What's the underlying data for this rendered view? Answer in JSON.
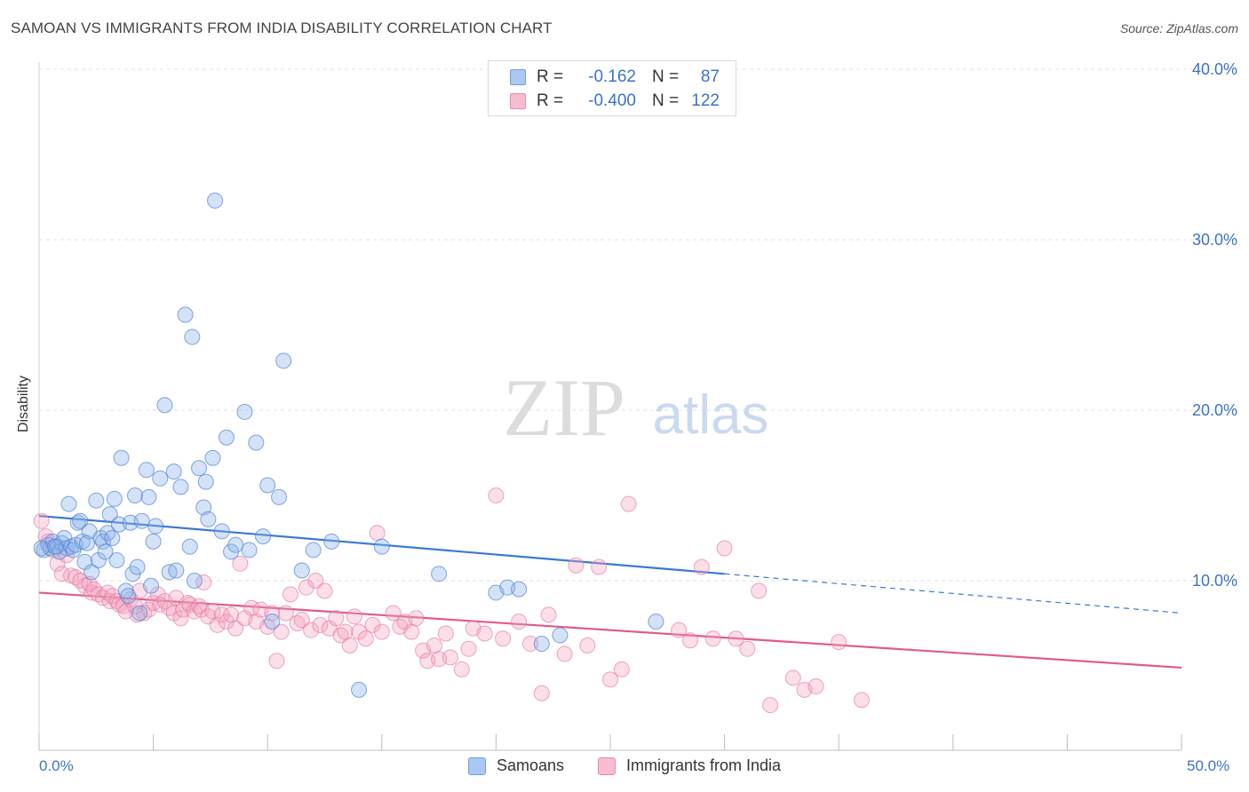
{
  "header": {
    "title": "SAMOAN VS IMMIGRANTS FROM INDIA DISABILITY CORRELATION CHART",
    "source": "Source: ZipAtlas.com"
  },
  "watermark": {
    "zip": "ZIP",
    "atlas": "atlas"
  },
  "legend": {
    "rows": [
      {
        "r_label": "R =",
        "r_value": "-0.162",
        "n_label": "N =",
        "n_value": "87",
        "color": "#aac8f2",
        "border": "#6f9fe0"
      },
      {
        "r_label": "R =",
        "r_value": "-0.400",
        "n_label": "N =",
        "n_value": "122",
        "color": "#f7bcd0",
        "border": "#e98aac"
      }
    ]
  },
  "bottom_legend": {
    "samoans": "Samoans",
    "india": "Immigrants from India"
  },
  "chart_data": {
    "type": "scatter",
    "title": "SAMOAN VS IMMIGRANTS FROM INDIA DISABILITY CORRELATION CHART",
    "xlabel": "",
    "ylabel": "Disability",
    "xlim": [
      0,
      50
    ],
    "ylim": [
      0,
      42
    ],
    "x_tick_labels": [
      "0.0%",
      "50.0%"
    ],
    "y_ticks": [
      10,
      20,
      30,
      40
    ],
    "y_tick_labels": [
      "10.0%",
      "20.0%",
      "30.0%",
      "40.0%"
    ],
    "grid": true,
    "legend_position": "top-center",
    "colors": {
      "samoans": "#3a78d6",
      "india": "#e05a8b",
      "axis_text": "#3a73c7"
    },
    "series": [
      {
        "name": "Samoans",
        "R": -0.162,
        "N": 87,
        "trend": {
          "x0": 0,
          "y0": 13.8,
          "x1": 30,
          "y1": 10.4,
          "dash_to_x": 50,
          "dash_to_y": 8.1
        },
        "points": [
          [
            0.2,
            11.8
          ],
          [
            0.4,
            12.1
          ],
          [
            0.5,
            11.9
          ],
          [
            0.6,
            12.3
          ],
          [
            0.8,
            12.0
          ],
          [
            0.9,
            11.7
          ],
          [
            1.0,
            12.2
          ],
          [
            1.1,
            12.5
          ],
          [
            1.2,
            11.9
          ],
          [
            1.3,
            14.5
          ],
          [
            1.4,
            12.0
          ],
          [
            1.5,
            11.8
          ],
          [
            1.6,
            12.1
          ],
          [
            1.7,
            13.4
          ],
          [
            1.8,
            13.5
          ],
          [
            1.9,
            12.3
          ],
          [
            2.0,
            11.1
          ],
          [
            2.1,
            12.2
          ],
          [
            2.2,
            12.9
          ],
          [
            2.3,
            10.5
          ],
          [
            2.5,
            14.7
          ],
          [
            2.6,
            11.2
          ],
          [
            2.7,
            12.5
          ],
          [
            2.8,
            12.3
          ],
          [
            2.9,
            11.7
          ],
          [
            3.0,
            12.8
          ],
          [
            3.1,
            13.9
          ],
          [
            3.2,
            12.5
          ],
          [
            3.3,
            14.8
          ],
          [
            3.4,
            11.2
          ],
          [
            3.5,
            13.3
          ],
          [
            3.6,
            17.2
          ],
          [
            3.8,
            9.4
          ],
          [
            3.9,
            9.1
          ],
          [
            4.0,
            13.4
          ],
          [
            4.1,
            10.4
          ],
          [
            4.2,
            15.0
          ],
          [
            4.3,
            10.8
          ],
          [
            4.4,
            8.1
          ],
          [
            4.5,
            13.5
          ],
          [
            4.7,
            16.5
          ],
          [
            4.8,
            14.9
          ],
          [
            4.9,
            9.7
          ],
          [
            5.0,
            12.3
          ],
          [
            5.1,
            13.2
          ],
          [
            5.3,
            16.0
          ],
          [
            5.5,
            20.3
          ],
          [
            5.7,
            10.5
          ],
          [
            5.9,
            16.4
          ],
          [
            6.0,
            10.6
          ],
          [
            6.2,
            15.5
          ],
          [
            6.4,
            25.6
          ],
          [
            6.6,
            12.0
          ],
          [
            6.7,
            24.3
          ],
          [
            6.8,
            10.0
          ],
          [
            7.0,
            16.6
          ],
          [
            7.2,
            14.3
          ],
          [
            7.3,
            15.8
          ],
          [
            7.4,
            13.6
          ],
          [
            7.6,
            17.2
          ],
          [
            7.7,
            32.3
          ],
          [
            8.0,
            12.9
          ],
          [
            8.2,
            18.4
          ],
          [
            8.4,
            11.7
          ],
          [
            8.6,
            12.1
          ],
          [
            9.0,
            19.9
          ],
          [
            9.2,
            11.8
          ],
          [
            9.5,
            18.1
          ],
          [
            9.8,
            12.6
          ],
          [
            10.0,
            15.6
          ],
          [
            10.2,
            7.6
          ],
          [
            10.5,
            14.9
          ],
          [
            10.7,
            22.9
          ],
          [
            11.5,
            10.6
          ],
          [
            12.0,
            11.8
          ],
          [
            12.8,
            12.3
          ],
          [
            14.0,
            3.6
          ],
          [
            15.0,
            12.0
          ],
          [
            17.5,
            10.4
          ],
          [
            20.0,
            9.3
          ],
          [
            20.5,
            9.6
          ],
          [
            21.0,
            9.5
          ],
          [
            22.0,
            6.3
          ],
          [
            22.8,
            6.8
          ],
          [
            27.0,
            7.6
          ],
          [
            0.1,
            11.9
          ],
          [
            0.7,
            12.0
          ]
        ]
      },
      {
        "name": "Immigrants from India",
        "R": -0.4,
        "N": 122,
        "trend": {
          "x0": 0,
          "y0": 9.3,
          "x1": 50,
          "y1": 4.9
        },
        "points": [
          [
            0.1,
            13.5
          ],
          [
            0.3,
            12.6
          ],
          [
            0.4,
            12.3
          ],
          [
            0.6,
            11.8
          ],
          [
            0.8,
            11.0
          ],
          [
            1.0,
            10.4
          ],
          [
            1.2,
            11.5
          ],
          [
            1.4,
            10.3
          ],
          [
            1.6,
            10.2
          ],
          [
            1.8,
            10.0
          ],
          [
            2.0,
            9.7
          ],
          [
            2.2,
            9.8
          ],
          [
            2.3,
            9.3
          ],
          [
            2.4,
            9.5
          ],
          [
            2.6,
            9.2
          ],
          [
            2.8,
            9.0
          ],
          [
            3.0,
            9.3
          ],
          [
            3.1,
            8.8
          ],
          [
            3.2,
            9.1
          ],
          [
            3.4,
            8.8
          ],
          [
            3.5,
            8.6
          ],
          [
            3.7,
            8.5
          ],
          [
            3.8,
            8.2
          ],
          [
            4.0,
            8.9
          ],
          [
            4.2,
            8.5
          ],
          [
            4.3,
            8.0
          ],
          [
            4.4,
            9.4
          ],
          [
            4.6,
            8.1
          ],
          [
            4.8,
            8.3
          ],
          [
            5.0,
            8.7
          ],
          [
            5.2,
            9.2
          ],
          [
            5.3,
            8.6
          ],
          [
            5.5,
            8.8
          ],
          [
            5.7,
            8.4
          ],
          [
            5.9,
            8.1
          ],
          [
            6.0,
            9.0
          ],
          [
            6.2,
            7.8
          ],
          [
            6.3,
            8.3
          ],
          [
            6.5,
            8.7
          ],
          [
            6.6,
            8.6
          ],
          [
            6.8,
            8.2
          ],
          [
            7.0,
            8.5
          ],
          [
            7.1,
            8.3
          ],
          [
            7.2,
            9.9
          ],
          [
            7.4,
            7.9
          ],
          [
            7.6,
            8.2
          ],
          [
            7.8,
            7.4
          ],
          [
            8.0,
            8.0
          ],
          [
            8.2,
            7.6
          ],
          [
            8.4,
            8.0
          ],
          [
            8.6,
            7.2
          ],
          [
            8.8,
            11.0
          ],
          [
            9.0,
            7.8
          ],
          [
            9.3,
            8.4
          ],
          [
            9.5,
            7.6
          ],
          [
            9.7,
            8.3
          ],
          [
            10.0,
            7.3
          ],
          [
            10.2,
            8.1
          ],
          [
            10.4,
            5.3
          ],
          [
            10.6,
            7.0
          ],
          [
            10.8,
            8.1
          ],
          [
            11.0,
            9.2
          ],
          [
            11.3,
            7.5
          ],
          [
            11.5,
            7.7
          ],
          [
            11.7,
            9.6
          ],
          [
            11.9,
            7.1
          ],
          [
            12.1,
            10.0
          ],
          [
            12.3,
            7.4
          ],
          [
            12.5,
            9.4
          ],
          [
            12.7,
            7.2
          ],
          [
            13.0,
            7.8
          ],
          [
            13.2,
            6.8
          ],
          [
            13.4,
            7.0
          ],
          [
            13.6,
            6.2
          ],
          [
            13.8,
            7.9
          ],
          [
            14.0,
            7.0
          ],
          [
            14.3,
            6.6
          ],
          [
            14.6,
            7.4
          ],
          [
            14.8,
            12.8
          ],
          [
            15.0,
            7.0
          ],
          [
            15.5,
            8.1
          ],
          [
            15.8,
            7.3
          ],
          [
            16.0,
            7.6
          ],
          [
            16.3,
            7.0
          ],
          [
            16.5,
            7.8
          ],
          [
            16.8,
            5.9
          ],
          [
            17.0,
            5.3
          ],
          [
            17.3,
            6.2
          ],
          [
            17.5,
            5.4
          ],
          [
            17.8,
            6.9
          ],
          [
            18.0,
            5.5
          ],
          [
            18.5,
            4.8
          ],
          [
            18.8,
            6.0
          ],
          [
            19.0,
            7.2
          ],
          [
            19.5,
            6.9
          ],
          [
            20.0,
            15.0
          ],
          [
            20.3,
            6.6
          ],
          [
            21.0,
            7.6
          ],
          [
            21.5,
            6.3
          ],
          [
            22.0,
            3.4
          ],
          [
            22.3,
            8.0
          ],
          [
            23.0,
            5.7
          ],
          [
            23.5,
            10.9
          ],
          [
            24.0,
            6.2
          ],
          [
            24.5,
            10.8
          ],
          [
            25.0,
            4.2
          ],
          [
            25.5,
            4.8
          ],
          [
            25.8,
            14.5
          ],
          [
            28.0,
            7.1
          ],
          [
            28.5,
            6.5
          ],
          [
            29.0,
            10.8
          ],
          [
            29.5,
            6.6
          ],
          [
            30.0,
            11.9
          ],
          [
            30.5,
            6.6
          ],
          [
            31.0,
            6.0
          ],
          [
            31.5,
            9.4
          ],
          [
            32.0,
            2.7
          ],
          [
            33.0,
            4.3
          ],
          [
            33.5,
            3.6
          ],
          [
            34.0,
            3.8
          ],
          [
            35.0,
            6.4
          ],
          [
            36.0,
            3.0
          ]
        ]
      }
    ]
  }
}
